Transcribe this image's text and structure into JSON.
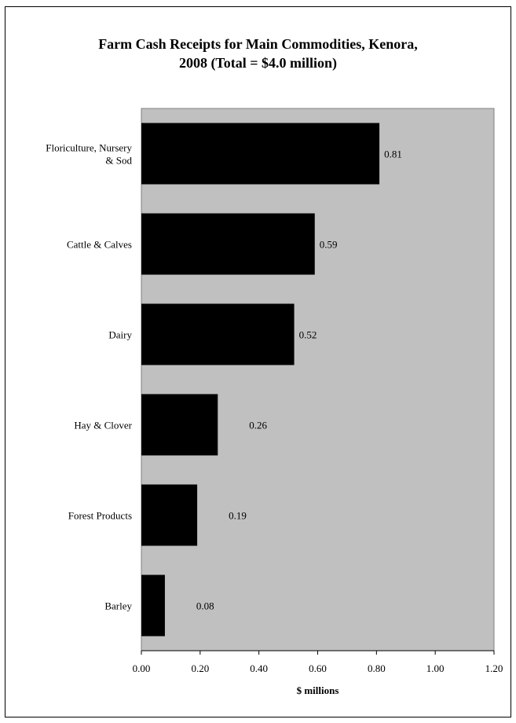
{
  "chart_data": {
    "type": "bar",
    "orientation": "horizontal",
    "title_lines": [
      "Farm Cash Receipts for Main Commodities, Kenora,",
      "2008 (Total = $4.0 million)"
    ],
    "categories": [
      [
        "Floriculture, Nursery",
        "& Sod"
      ],
      [
        "Cattle & Calves"
      ],
      [
        "Dairy"
      ],
      [
        "Hay & Clover"
      ],
      [
        "Forest Products"
      ],
      [
        "Barley"
      ]
    ],
    "values": [
      0.81,
      0.59,
      0.52,
      0.26,
      0.19,
      0.08
    ],
    "value_labels": [
      "0.81",
      "0.59",
      "0.52",
      "0.26",
      "0.19",
      "0.08"
    ],
    "xlabel": "$ millions",
    "xlim": [
      0,
      1.2
    ],
    "x_ticks": [
      "0.00",
      "0.20",
      "0.40",
      "0.60",
      "0.80",
      "1.00",
      "1.20"
    ],
    "grid": false,
    "legend": "none",
    "colors": {
      "bar": "#000000",
      "plot_background": "#c0c0c0"
    }
  }
}
